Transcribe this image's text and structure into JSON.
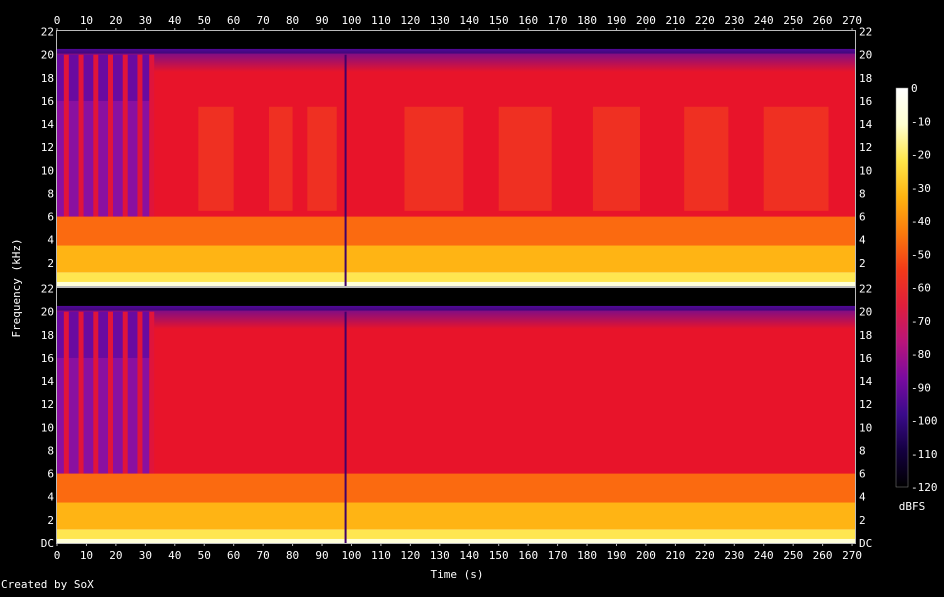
{
  "chart_data": {
    "type": "heatmap",
    "title": "",
    "xlabel": "Time (s)",
    "ylabel": "Frequency (kHz)",
    "x_ticks": [
      0,
      10,
      20,
      30,
      40,
      50,
      60,
      70,
      80,
      90,
      100,
      110,
      120,
      130,
      140,
      150,
      160,
      170,
      180,
      190,
      200,
      210,
      220,
      230,
      240,
      250,
      260,
      270
    ],
    "xlim": [
      0,
      271
    ],
    "channels": [
      {
        "name": "",
        "y_ticks": [
          "2",
          "4",
          "6",
          "8",
          "10",
          "12",
          "14",
          "16",
          "18",
          "20",
          "22"
        ],
        "ylim": [
          0,
          22.05
        ]
      },
      {
        "name": "",
        "y_ticks": [
          "DC",
          "2",
          "4",
          "6",
          "8",
          "10",
          "12",
          "14",
          "16",
          "18",
          "20",
          "22"
        ],
        "ylim": [
          0,
          22.05
        ]
      }
    ],
    "colorbar": {
      "label": "dBFS",
      "ticks": [
        "0",
        "-10",
        "-20",
        "-30",
        "-40",
        "-50",
        "-60",
        "-70",
        "-80",
        "-90",
        "-100",
        "-110",
        "-120"
      ],
      "range": [
        -120,
        0
      ],
      "colors": [
        "#000000",
        "#140040",
        "#3a0a8a",
        "#7a0aa0",
        "#b8147a",
        "#e01e3c",
        "#f23a18",
        "#fb7a0c",
        "#ffb410",
        "#ffe64a",
        "#ffffd0",
        "#ffffff"
      ]
    },
    "grid": false,
    "legend": "right"
  },
  "footer": {
    "credit": "Created by SoX"
  }
}
